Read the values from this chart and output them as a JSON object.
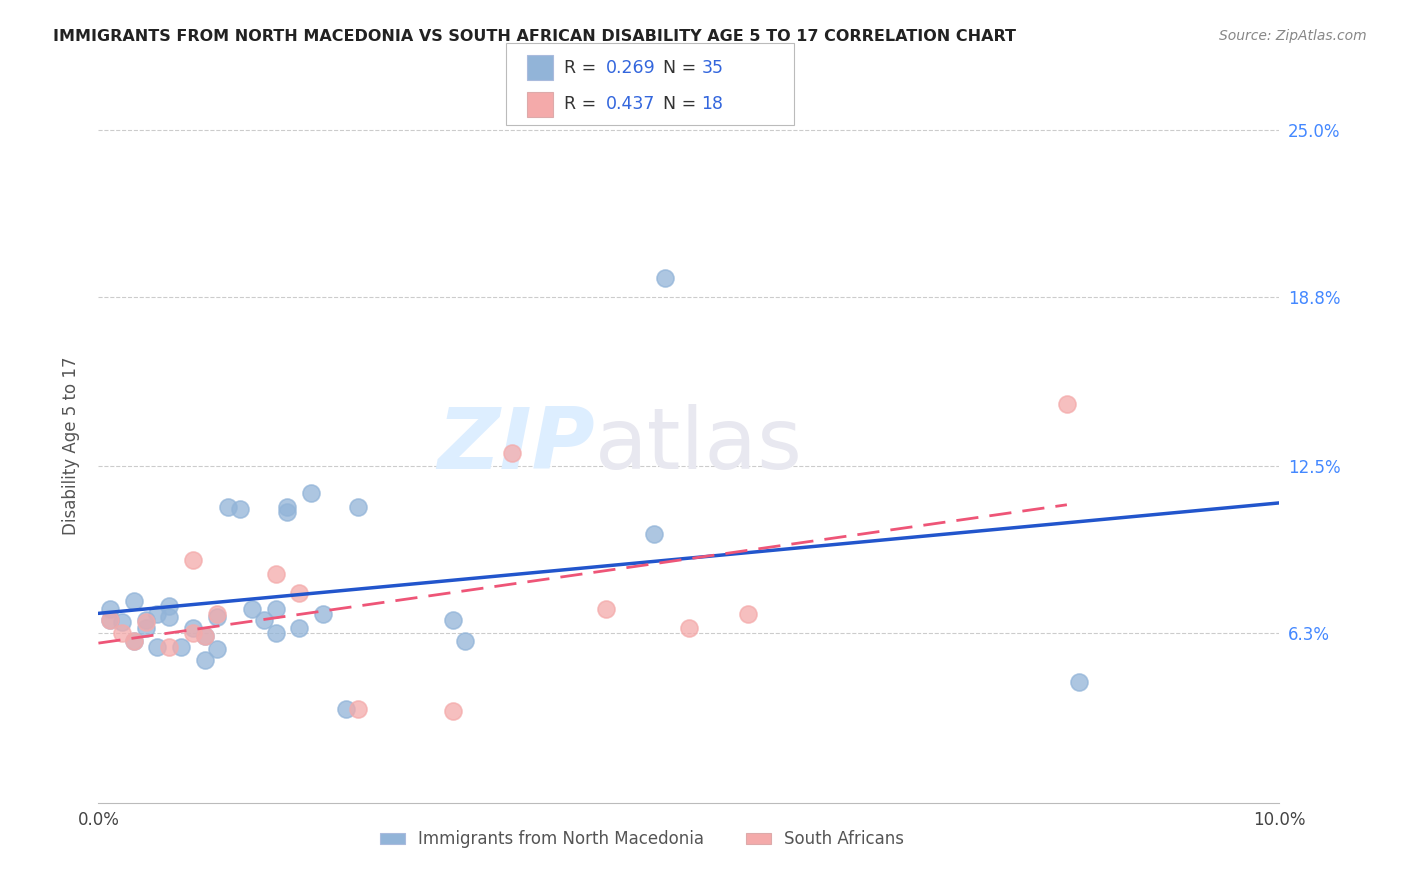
{
  "title": "IMMIGRANTS FROM NORTH MACEDONIA VS SOUTH AFRICAN DISABILITY AGE 5 TO 17 CORRELATION CHART",
  "source": "Source: ZipAtlas.com",
  "ylabel": "Disability Age 5 to 17",
  "xlim": [
    0,
    0.1
  ],
  "ylim": [
    0,
    0.265
  ],
  "xtick_positions": [
    0.0,
    0.02,
    0.04,
    0.06,
    0.08,
    0.1
  ],
  "xtick_labels": [
    "0.0%",
    "",
    "",
    "",
    "",
    "10.0%"
  ],
  "ytick_vals": [
    0.063,
    0.125,
    0.188,
    0.25
  ],
  "ytick_labels": [
    "6.3%",
    "12.5%",
    "18.8%",
    "25.0%"
  ],
  "blue_R": "0.269",
  "blue_N": "35",
  "pink_R": "0.437",
  "pink_N": "18",
  "legend_label_blue": "Immigrants from North Macedonia",
  "legend_label_pink": "South Africans",
  "blue_color": "#92B4D8",
  "pink_color": "#F4AAAA",
  "line_blue_color": "#2255CC",
  "line_pink_color": "#EE5577",
  "watermark_zip": "ZIP",
  "watermark_atlas": "atlas",
  "blue_points_x": [
    0.001,
    0.001,
    0.002,
    0.003,
    0.003,
    0.004,
    0.004,
    0.005,
    0.005,
    0.006,
    0.006,
    0.007,
    0.008,
    0.009,
    0.009,
    0.01,
    0.01,
    0.011,
    0.012,
    0.013,
    0.014,
    0.015,
    0.015,
    0.016,
    0.016,
    0.017,
    0.018,
    0.019,
    0.021,
    0.022,
    0.03,
    0.031,
    0.047,
    0.048,
    0.083
  ],
  "blue_points_y": [
    0.068,
    0.072,
    0.067,
    0.06,
    0.075,
    0.065,
    0.068,
    0.058,
    0.07,
    0.069,
    0.073,
    0.058,
    0.065,
    0.053,
    0.062,
    0.057,
    0.069,
    0.11,
    0.109,
    0.072,
    0.068,
    0.063,
    0.072,
    0.11,
    0.108,
    0.065,
    0.115,
    0.07,
    0.035,
    0.11,
    0.068,
    0.06,
    0.1,
    0.195,
    0.045
  ],
  "pink_points_x": [
    0.001,
    0.002,
    0.003,
    0.004,
    0.006,
    0.008,
    0.008,
    0.009,
    0.01,
    0.015,
    0.017,
    0.022,
    0.03,
    0.035,
    0.043,
    0.05,
    0.055,
    0.082
  ],
  "pink_points_y": [
    0.068,
    0.063,
    0.06,
    0.067,
    0.058,
    0.063,
    0.09,
    0.062,
    0.07,
    0.085,
    0.078,
    0.035,
    0.034,
    0.13,
    0.072,
    0.065,
    0.07,
    0.148
  ]
}
